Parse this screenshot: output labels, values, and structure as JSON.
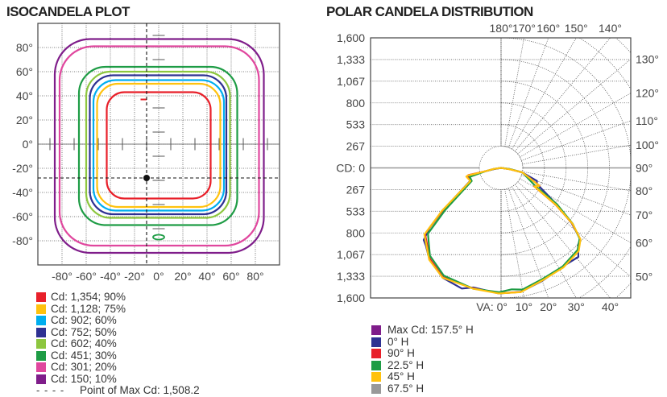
{
  "chart_data": [
    {
      "type": "contour",
      "title": "ISOCANDELA PLOT",
      "x_ticks": [
        "-80°",
        "-60°",
        "-40°",
        "-20°",
        "0°",
        "20°",
        "40°",
        "60°",
        "80°"
      ],
      "y_ticks": [
        "80°",
        "60°",
        "40°",
        "20°",
        "0°",
        "-20°",
        "-40°",
        "-60°",
        "-80°"
      ],
      "xlim": [
        -100,
        100
      ],
      "ylim": [
        -100,
        100
      ],
      "grid": true,
      "levels": [
        {
          "label": "Cd: 1,354; 90%",
          "cd": 1354,
          "percent": 90,
          "color": "#e8202a",
          "h_range": [
            -43,
            43
          ],
          "v_range": [
            -45,
            43
          ]
        },
        {
          "label": "Cd: 1,128; 75%",
          "cd": 1128,
          "percent": 75,
          "color": "#ffc20e",
          "h_range": [
            -51,
            51
          ],
          "v_range": [
            -52,
            50
          ]
        },
        {
          "label": "Cd: 902; 60%",
          "cd": 902,
          "percent": 60,
          "color": "#00aeef",
          "h_range": [
            -54,
            54
          ],
          "v_range": [
            -55,
            53
          ]
        },
        {
          "label": "Cd: 752; 50%",
          "cd": 752,
          "percent": 50,
          "color": "#2e3192",
          "h_range": [
            -57,
            56
          ],
          "v_range": [
            -58,
            57
          ]
        },
        {
          "label": "Cd: 602; 40%",
          "cd": 602,
          "percent": 40,
          "color": "#8dc63f",
          "h_range": [
            -60,
            59
          ],
          "v_range": [
            -61,
            60
          ]
        },
        {
          "label": "Cd: 451; 30%",
          "cd": 451,
          "percent": 30,
          "color": "#1e9c45",
          "h_range": [
            -66,
            65
          ],
          "v_range": [
            -67,
            64
          ]
        },
        {
          "label": "Cd: 301; 20%",
          "cd": 301,
          "percent": 20,
          "color": "#e0479e",
          "h_range": [
            -82,
            83
          ],
          "v_range": [
            -84,
            81
          ]
        },
        {
          "label": "Cd: 150; 10%",
          "cd": 150,
          "percent": 10,
          "color": "#7f1d8a",
          "h_range": [
            -86,
            87
          ],
          "v_range": [
            -90,
            87
          ]
        }
      ],
      "max_point": {
        "label": "Point of Max Cd: 1,508.2",
        "cd": 1508.2,
        "h": -10,
        "v": -28
      }
    },
    {
      "type": "polar",
      "title": "POLAR CANDELA DISTRIBUTION",
      "r_ticks_top": [
        "1,600",
        "1,333",
        "1,067",
        "800",
        "533",
        "267"
      ],
      "r_zero": "CD: 0",
      "r_ticks_bottom": [
        "267",
        "533",
        "800",
        "1,067",
        "1,333",
        "1,600"
      ],
      "rmax": 1600,
      "angle_labels_top": [
        "180°",
        "170°",
        "160°",
        "150°",
        "140°"
      ],
      "angle_labels_right": [
        "130°",
        "120°",
        "110°",
        "100°",
        "90°",
        "80°",
        "70°",
        "60°",
        "50°"
      ],
      "angle_labels_bottom": [
        "VA: 0°",
        "10°",
        "20°",
        "30°",
        "40°"
      ],
      "series": [
        {
          "name": "Max Cd: 157.5° H",
          "color": "#7f1d8a",
          "points": []
        },
        {
          "name": "0° H",
          "color": "#2e3192",
          "points": [
            [
              -80,
              90
            ],
            [
              -78,
              200
            ],
            [
              -76,
              430
            ],
            [
              -68,
              400
            ],
            [
              -54,
              880
            ],
            [
              -50,
              1150
            ],
            [
              -47,
              1300
            ],
            [
              -44,
              1330
            ],
            [
              -38,
              1430
            ],
            [
              -28,
              1530
            ],
            [
              -18,
              1560
            ],
            [
              -13,
              1510
            ],
            [
              -1,
              1545
            ],
            [
              9,
              1545
            ],
            [
              20,
              1480
            ],
            [
              32,
              1430
            ],
            [
              41,
              1450
            ],
            [
              45,
              1340
            ],
            [
              48,
              1310
            ],
            [
              52,
              1100
            ],
            [
              57,
              800
            ],
            [
              66,
              480
            ],
            [
              70,
              470
            ],
            [
              78,
              265
            ],
            [
              82,
              110
            ],
            [
              0,
              0
            ]
          ]
        },
        {
          "name": "90° H",
          "color": "#e8202a",
          "points": [
            [
              -82,
              90
            ],
            [
              -78,
              193
            ],
            [
              -77.5,
              413
            ],
            [
              -75.9,
              433
            ],
            [
              -67,
              402
            ],
            [
              -54,
              885
            ],
            [
              -49,
              1239
            ],
            [
              -38,
              1421
            ],
            [
              -28,
              1524
            ],
            [
              -13.5,
              1520
            ],
            [
              -1,
              1543
            ],
            [
              9,
              1546
            ],
            [
              20,
              1468
            ],
            [
              32,
              1437
            ],
            [
              43,
              1391
            ],
            [
              48,
              1310
            ],
            [
              52,
              1107
            ],
            [
              56,
              809
            ],
            [
              61,
              463
            ],
            [
              65,
              522
            ],
            [
              78,
              264
            ],
            [
              81,
              110
            ],
            [
              0,
              0
            ]
          ]
        },
        {
          "name": "22.5° H",
          "color": "#1e9c45",
          "points": [
            [
              -82,
              85
            ],
            [
              -78,
              190
            ],
            [
              -74,
              400
            ],
            [
              -66,
              395
            ],
            [
              -53,
              860
            ],
            [
              -48,
              1210
            ],
            [
              -39,
              1390
            ],
            [
              -28,
              1500
            ],
            [
              -13,
              1525
            ],
            [
              -1,
              1530
            ],
            [
              5,
              1500
            ],
            [
              10,
              1520
            ],
            [
              20,
              1460
            ],
            [
              32,
              1430
            ],
            [
              43,
              1380
            ],
            [
              48,
              1300
            ],
            [
              52,
              1120
            ],
            [
              57,
              820
            ],
            [
              62,
              480
            ],
            [
              78,
              270
            ],
            [
              82,
              115
            ],
            [
              0,
              0
            ]
          ]
        },
        {
          "name": "45° H",
          "color": "#ffc20e",
          "points": [
            [
              -82,
              92
            ],
            [
              -78,
              200
            ],
            [
              -77,
              420
            ],
            [
              -76,
              440
            ],
            [
              -67,
              410
            ],
            [
              -54,
              900
            ],
            [
              -49,
              1250
            ],
            [
              -38,
              1435
            ],
            [
              -28,
              1530
            ],
            [
              -13,
              1525
            ],
            [
              -1,
              1545
            ],
            [
              9,
              1548
            ],
            [
              20,
              1475
            ],
            [
              32,
              1445
            ],
            [
              43,
              1400
            ],
            [
              48,
              1315
            ],
            [
              52,
              1115
            ],
            [
              56,
              815
            ],
            [
              61,
              470
            ],
            [
              65,
              520
            ],
            [
              78,
              268
            ],
            [
              81,
              112
            ],
            [
              0,
              0
            ]
          ]
        },
        {
          "name": "67.5° H",
          "color": "#999999",
          "points": []
        }
      ]
    }
  ]
}
